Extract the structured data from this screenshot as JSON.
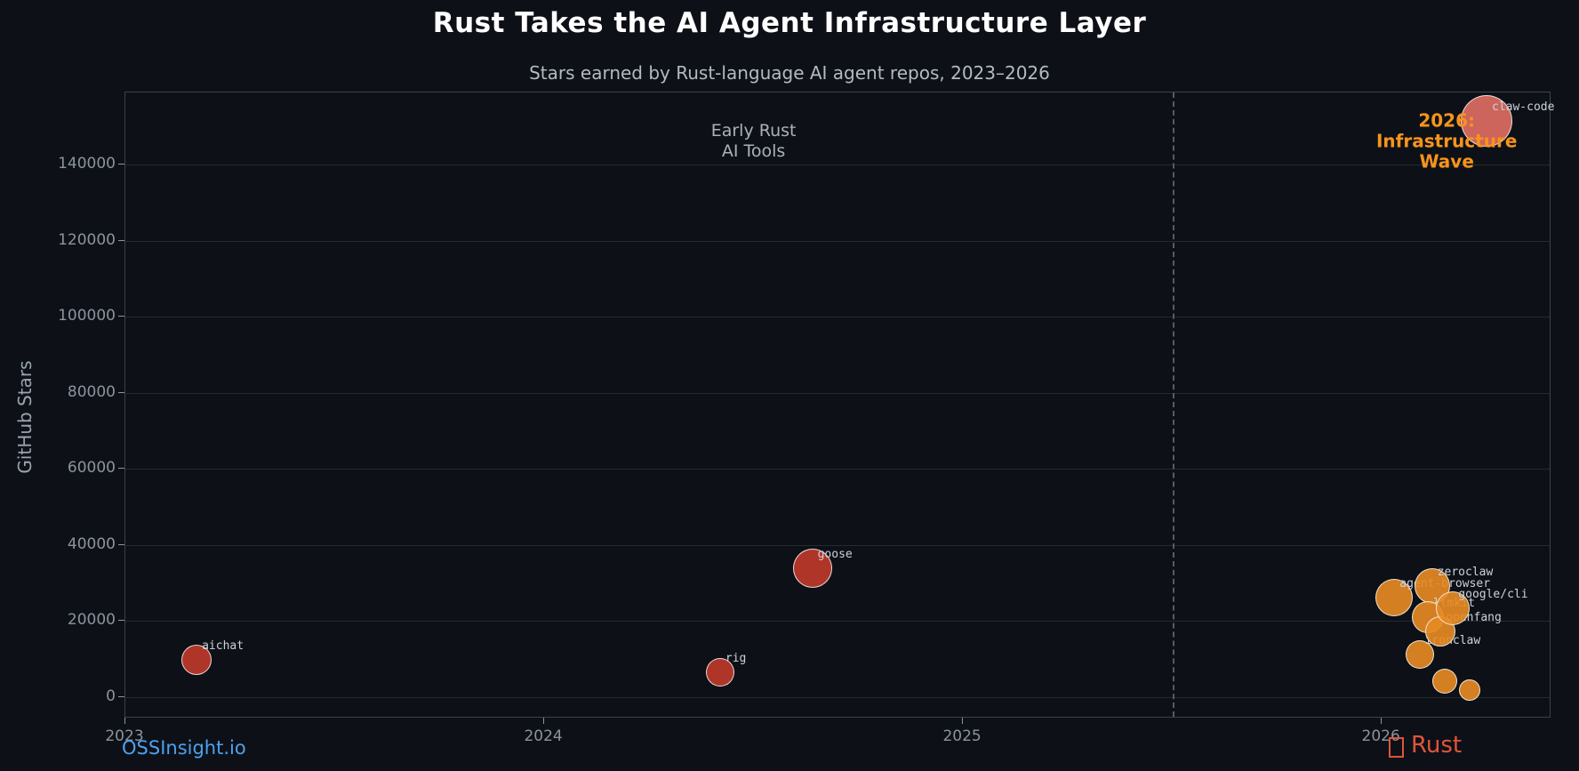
{
  "chart_data": {
    "type": "scatter",
    "title": "Rust Takes the AI Agent Infrastructure Layer",
    "subtitle": "Stars earned by Rust-language AI agent repos, 2023–2026",
    "xlabel": "",
    "ylabel": "GitHub Stars",
    "xlim": [
      2023,
      2026.405
    ],
    "ylim": [
      -5610,
      158900
    ],
    "x_ticks": [
      2023,
      2024,
      2025,
      2026
    ],
    "y_ticks": [
      0,
      20000,
      40000,
      60000,
      80000,
      100000,
      120000,
      140000
    ],
    "grid": "horizontal-only",
    "legend": "none",
    "divider": {
      "x": 2025.5,
      "style": "dashed-vertical"
    },
    "annotations": [
      {
        "text": "Early Rust\nAI Tools",
        "x": 2024.5,
        "y": 146000,
        "color": "#a9b1ba",
        "bold": false
      },
      {
        "text": "2026: Infrastructure\nWave",
        "x": 2026.155,
        "y": 146000,
        "color": "#f7941d",
        "bold": true
      }
    ],
    "points": [
      {
        "label": "aichat",
        "x": 2023.17,
        "y": 9800,
        "r": 17,
        "color": "#c0392b"
      },
      {
        "label": "rig",
        "x": 2024.42,
        "y": 6500,
        "r": 16,
        "color": "#c0392b"
      },
      {
        "label": "goose",
        "x": 2024.64,
        "y": 34000,
        "r": 22,
        "color": "#c0392b"
      },
      {
        "label": "agent-browser",
        "x": 2026.03,
        "y": 26200,
        "r": 21,
        "color": "#e78a23"
      },
      {
        "label": "ironclaw",
        "x": 2026.09,
        "y": 11200,
        "r": 16,
        "color": "#e78a23"
      },
      {
        "label": "zeroclaw",
        "x": 2026.12,
        "y": 29200,
        "r": 20,
        "color": "#e78a23"
      },
      {
        "label": "llmkit",
        "x": 2026.11,
        "y": 21000,
        "r": 18,
        "color": "#e78a23"
      },
      {
        "label": "openfang",
        "x": 2026.14,
        "y": 17300,
        "r": 17,
        "color": "#e78a23"
      },
      {
        "label": "google/cli",
        "x": 2026.17,
        "y": 23400,
        "r": 19,
        "color": "#e78a23"
      },
      {
        "label": "",
        "x": 2026.15,
        "y": 4200,
        "r": 14,
        "color": "#e78a23"
      },
      {
        "label": "",
        "x": 2026.21,
        "y": 1900,
        "r": 12,
        "color": "#e78a23"
      },
      {
        "label": "claw-code",
        "x": 2026.25,
        "y": 151500,
        "r": 29,
        "color": "#e06e63"
      }
    ]
  },
  "footer": {
    "left_link": "OSSInsight.io",
    "right_brand": "Rust",
    "right_icon": "rust-crab-tofu-icon"
  },
  "colors": {
    "background": "#0d1117",
    "plot_border": "#3b424a",
    "gridline": "#242a32",
    "tick_text": "#8b949e",
    "red_early": "#c0392b",
    "orange_wave": "#e78a23",
    "salmon_top": "#e06e63",
    "accent_orange": "#f7941d",
    "link_blue": "#4da0f0",
    "rust_red": "#e2533a"
  }
}
